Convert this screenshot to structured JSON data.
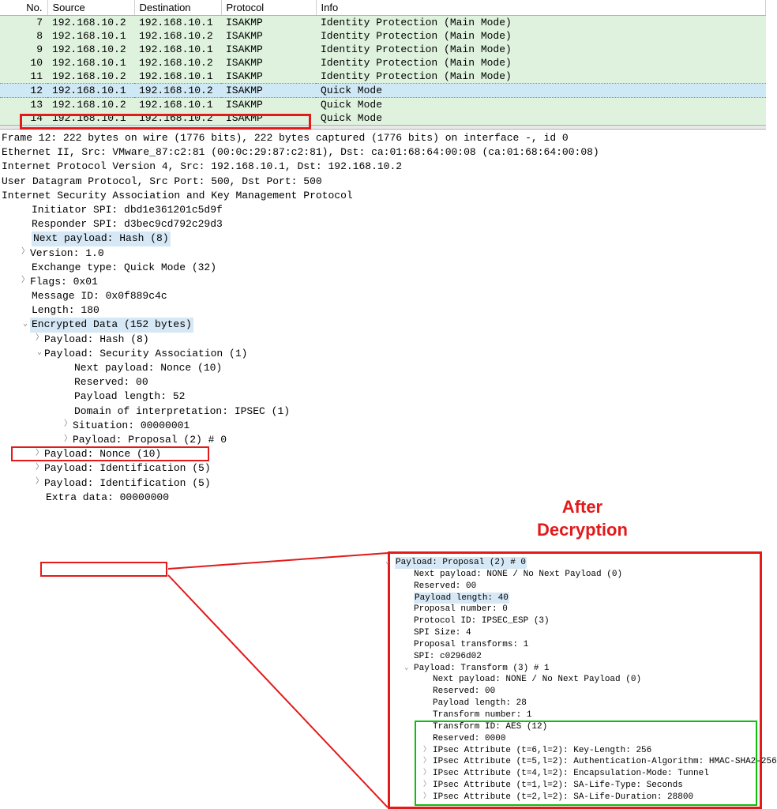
{
  "columns": {
    "no": "No.",
    "source": "Source",
    "destination": "Destination",
    "protocol": "Protocol",
    "info": "Info"
  },
  "rows": [
    {
      "no": "7",
      "src": "192.168.10.2",
      "dst": "192.168.10.1",
      "proto": "ISAKMP",
      "info": "Identity Protection (Main Mode)",
      "sel": false
    },
    {
      "no": "8",
      "src": "192.168.10.1",
      "dst": "192.168.10.2",
      "proto": "ISAKMP",
      "info": "Identity Protection (Main Mode)",
      "sel": false
    },
    {
      "no": "9",
      "src": "192.168.10.2",
      "dst": "192.168.10.1",
      "proto": "ISAKMP",
      "info": "Identity Protection (Main Mode)",
      "sel": false
    },
    {
      "no": "10",
      "src": "192.168.10.1",
      "dst": "192.168.10.2",
      "proto": "ISAKMP",
      "info": "Identity Protection (Main Mode)",
      "sel": false
    },
    {
      "no": "11",
      "src": "192.168.10.2",
      "dst": "192.168.10.1",
      "proto": "ISAKMP",
      "info": "Identity Protection (Main Mode)",
      "sel": false
    },
    {
      "no": "12",
      "src": "192.168.10.1",
      "dst": "192.168.10.2",
      "proto": "ISAKMP",
      "info": "Quick Mode",
      "sel": true
    },
    {
      "no": "13",
      "src": "192.168.10.2",
      "dst": "192.168.10.1",
      "proto": "ISAKMP",
      "info": "Quick Mode",
      "sel": false
    },
    {
      "no": "14",
      "src": "192.168.10.1",
      "dst": "192.168.10.2",
      "proto": "ISAKMP",
      "info": "Quick Mode",
      "sel": false
    }
  ],
  "tree": {
    "frame": "Frame 12: 222 bytes on wire (1776 bits), 222 bytes captured (1776 bits) on interface -, id 0",
    "eth": "Ethernet II, Src: VMware_87:c2:81 (00:0c:29:87:c2:81), Dst: ca:01:68:64:00:08 (ca:01:68:64:00:08)",
    "ip": "Internet Protocol Version 4, Src: 192.168.10.1, Dst: 192.168.10.2",
    "udp": "User Datagram Protocol, Src Port: 500, Dst Port: 500",
    "isakmp": "Internet Security Association and Key Management Protocol",
    "initspi": "Initiator SPI: dbd1e361201c5d9f",
    "respspi": "Responder SPI: d3bec9cd792c29d3",
    "nextpay": "Next payload: Hash (8)",
    "version": "Version: 1.0",
    "exctype": "Exchange type: Quick Mode (32)",
    "flags": "Flags: 0x01",
    "msgid": "Message ID: 0x0f889c4c",
    "length": "Length: 180",
    "encdata": "Encrypted Data (152 bytes)",
    "phash": "Payload: Hash (8)",
    "psa": "Payload: Security Association (1)",
    "sa_next": "Next payload: Nonce (10)",
    "sa_res": "Reserved: 00",
    "sa_len": "Payload length: 52",
    "sa_doi": "Domain of interpretation: IPSEC (1)",
    "sa_sit": "Situation: 00000001",
    "sa_prop": "Payload: Proposal (2) # 0",
    "pnonce": "Payload: Nonce (10)",
    "pid1": "Payload: Identification (5)",
    "pid2": "Payload: Identification (5)",
    "extra": "Extra data: 00000000"
  },
  "after_title": "After\nDecryption",
  "callout": {
    "l0": "Payload: Proposal (2) # 0",
    "l1": "Next payload: NONE / No Next Payload  (0)",
    "l2": "Reserved: 00",
    "l3": "Payload length: 40",
    "l4": "Proposal number: 0",
    "l5": "Protocol ID: IPSEC_ESP (3)",
    "l6": "SPI Size: 4",
    "l7": "Proposal transforms: 1",
    "l8": "SPI: c0296d02",
    "l9": "Payload: Transform (3) # 1",
    "l10": "Next payload: NONE / No Next Payload  (0)",
    "l11": "Reserved: 00",
    "l12": "Payload length: 28",
    "l13": "Transform number: 1",
    "l14": "Transform ID: AES (12)",
    "l15": "Reserved: 0000",
    "l16": "IPsec Attribute (t=6,l=2): Key-Length: 256",
    "l17": "IPsec Attribute (t=5,l=2): Authentication-Algorithm: HMAC-SHA2-256",
    "l18": "IPsec Attribute (t=4,l=2): Encapsulation-Mode: Tunnel",
    "l19": "IPsec Attribute (t=1,l=2): SA-Life-Type: Seconds",
    "l20": "IPsec Attribute (t=2,l=2): SA-Life-Duration: 28800"
  },
  "colors": {
    "row_normal_bg": "#def2de",
    "row_selected_bg": "#cfe8f5",
    "highlight_bg": "#d6e8f5",
    "red_annot": "#e21a1a",
    "green_annot": "#0bbf0b"
  }
}
